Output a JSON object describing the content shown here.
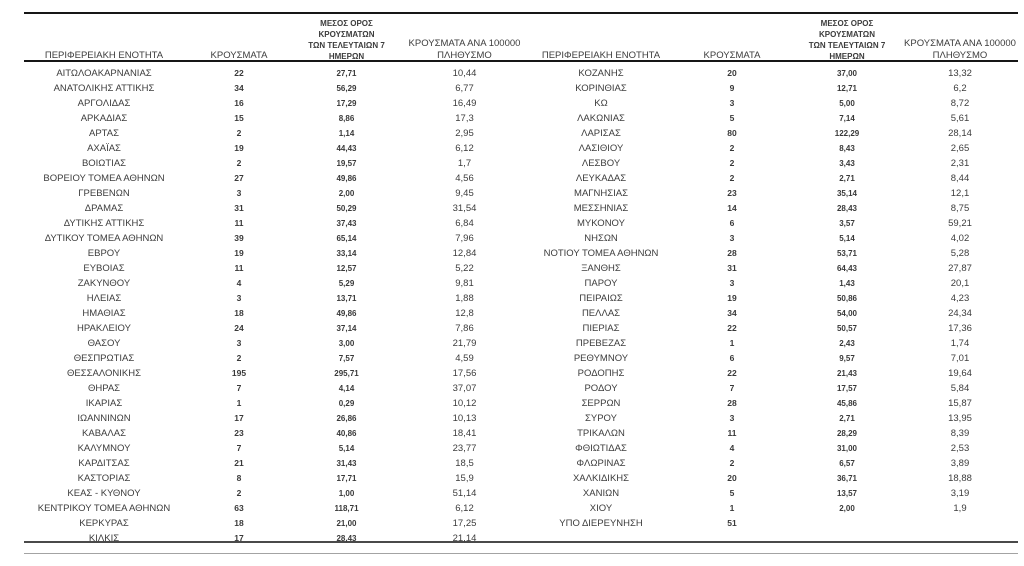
{
  "columns": {
    "region": "ΠΕΡΙΦΕΡΕΙΑΚΗ ΕΝΟΤΗΤΑ",
    "cases": "ΚΡΟΥΣΜΑΤΑ",
    "avg7": "ΜΕΣΟΣ ΟΡΟΣ ΚΡΟΥΣΜΑΤΩΝ\nΤΩΝ ΤΕΛΕΥΤΑΙΩΝ 7\nΗΜΕΡΩΝ",
    "per100k": "ΚΡΟΥΣΜΑΤΑ ΑΝΑ 100000\nΠΛΗΘΥΣΜΟ"
  },
  "left_table": {
    "rows": [
      {
        "region": "ΑΙΤΩΛΟΑΚΑΡΝΑΝΙΑΣ",
        "cases": "22",
        "avg7": "27,71",
        "per100k": "10,44"
      },
      {
        "region": "ΑΝΑΤΟΛΙΚΗΣ ΑΤΤΙΚΗΣ",
        "cases": "34",
        "avg7": "56,29",
        "per100k": "6,77"
      },
      {
        "region": "ΑΡΓΟΛΙΔΑΣ",
        "cases": "16",
        "avg7": "17,29",
        "per100k": "16,49"
      },
      {
        "region": "ΑΡΚΑΔΙΑΣ",
        "cases": "15",
        "avg7": "8,86",
        "per100k": "17,3"
      },
      {
        "region": "ΑΡΤΑΣ",
        "cases": "2",
        "avg7": "1,14",
        "per100k": "2,95"
      },
      {
        "region": "ΑΧΑΪΑΣ",
        "cases": "19",
        "avg7": "44,43",
        "per100k": "6,12"
      },
      {
        "region": "ΒΟΙΩΤΙΑΣ",
        "cases": "2",
        "avg7": "19,57",
        "per100k": "1,7"
      },
      {
        "region": "ΒΟΡΕΙΟΥ ΤΟΜΕΑ ΑΘΗΝΩΝ",
        "cases": "27",
        "avg7": "49,86",
        "per100k": "4,56"
      },
      {
        "region": "ΓΡΕΒΕΝΩΝ",
        "cases": "3",
        "avg7": "2,00",
        "per100k": "9,45"
      },
      {
        "region": "ΔΡΑΜΑΣ",
        "cases": "31",
        "avg7": "50,29",
        "per100k": "31,54"
      },
      {
        "region": "ΔΥΤΙΚΗΣ ΑΤΤΙΚΗΣ",
        "cases": "11",
        "avg7": "37,43",
        "per100k": "6,84"
      },
      {
        "region": "ΔΥΤΙΚΟΥ ΤΟΜΕΑ ΑΘΗΝΩΝ",
        "cases": "39",
        "avg7": "65,14",
        "per100k": "7,96"
      },
      {
        "region": "ΕΒΡΟΥ",
        "cases": "19",
        "avg7": "33,14",
        "per100k": "12,84"
      },
      {
        "region": "ΕΥΒΟΙΑΣ",
        "cases": "11",
        "avg7": "12,57",
        "per100k": "5,22"
      },
      {
        "region": "ΖΑΚΥΝΘΟΥ",
        "cases": "4",
        "avg7": "5,29",
        "per100k": "9,81"
      },
      {
        "region": "ΗΛΕΙΑΣ",
        "cases": "3",
        "avg7": "13,71",
        "per100k": "1,88"
      },
      {
        "region": "ΗΜΑΘΙΑΣ",
        "cases": "18",
        "avg7": "49,86",
        "per100k": "12,8"
      },
      {
        "region": "ΗΡΑΚΛΕΙΟΥ",
        "cases": "24",
        "avg7": "37,14",
        "per100k": "7,86"
      },
      {
        "region": "ΘΑΣΟΥ",
        "cases": "3",
        "avg7": "3,00",
        "per100k": "21,79"
      },
      {
        "region": "ΘΕΣΠΡΩΤΙΑΣ",
        "cases": "2",
        "avg7": "7,57",
        "per100k": "4,59"
      },
      {
        "region": "ΘΕΣΣΑΛΟΝΙΚΗΣ",
        "cases": "195",
        "avg7": "295,71",
        "per100k": "17,56"
      },
      {
        "region": "ΘΗΡΑΣ",
        "cases": "7",
        "avg7": "4,14",
        "per100k": "37,07"
      },
      {
        "region": "ΙΚΑΡΙΑΣ",
        "cases": "1",
        "avg7": "0,29",
        "per100k": "10,12"
      },
      {
        "region": "ΙΩΑΝΝΙΝΩΝ",
        "cases": "17",
        "avg7": "26,86",
        "per100k": "10,13"
      },
      {
        "region": "ΚΑΒΑΛΑΣ",
        "cases": "23",
        "avg7": "40,86",
        "per100k": "18,41"
      },
      {
        "region": "ΚΑΛΥΜΝΟΥ",
        "cases": "7",
        "avg7": "5,14",
        "per100k": "23,77"
      },
      {
        "region": "ΚΑΡΔΙΤΣΑΣ",
        "cases": "21",
        "avg7": "31,43",
        "per100k": "18,5"
      },
      {
        "region": "ΚΑΣΤΟΡΙΑΣ",
        "cases": "8",
        "avg7": "17,71",
        "per100k": "15,9"
      },
      {
        "region": "ΚΕΑΣ - ΚΥΘΝΟΥ",
        "cases": "2",
        "avg7": "1,00",
        "per100k": "51,14"
      },
      {
        "region": "ΚΕΝΤΡΙΚΟΥ ΤΟΜΕΑ ΑΘΗΝΩΝ",
        "cases": "63",
        "avg7": "118,71",
        "per100k": "6,12"
      },
      {
        "region": "ΚΕΡΚΥΡΑΣ",
        "cases": "18",
        "avg7": "21,00",
        "per100k": "17,25"
      },
      {
        "region": "ΚΙΛΚΙΣ",
        "cases": "17",
        "avg7": "28,43",
        "per100k": "21,14"
      }
    ]
  },
  "right_table": {
    "rows": [
      {
        "region": "ΚΟΖΑΝΗΣ",
        "cases": "20",
        "avg7": "37,00",
        "per100k": "13,32"
      },
      {
        "region": "ΚΟΡΙΝΘΙΑΣ",
        "cases": "9",
        "avg7": "12,71",
        "per100k": "6,2"
      },
      {
        "region": "ΚΩ",
        "cases": "3",
        "avg7": "5,00",
        "per100k": "8,72"
      },
      {
        "region": "ΛΑΚΩΝΙΑΣ",
        "cases": "5",
        "avg7": "7,14",
        "per100k": "5,61"
      },
      {
        "region": "ΛΑΡΙΣΑΣ",
        "cases": "80",
        "avg7": "122,29",
        "per100k": "28,14"
      },
      {
        "region": "ΛΑΣΙΘΙΟΥ",
        "cases": "2",
        "avg7": "8,43",
        "per100k": "2,65"
      },
      {
        "region": "ΛΕΣΒΟΥ",
        "cases": "2",
        "avg7": "3,43",
        "per100k": "2,31"
      },
      {
        "region": "ΛΕΥΚΑΔΑΣ",
        "cases": "2",
        "avg7": "2,71",
        "per100k": "8,44"
      },
      {
        "region": "ΜΑΓΝΗΣΙΑΣ",
        "cases": "23",
        "avg7": "35,14",
        "per100k": "12,1"
      },
      {
        "region": "ΜΕΣΣΗΝΙΑΣ",
        "cases": "14",
        "avg7": "28,43",
        "per100k": "8,75"
      },
      {
        "region": "ΜΥΚΟΝΟΥ",
        "cases": "6",
        "avg7": "3,57",
        "per100k": "59,21"
      },
      {
        "region": "ΝΗΣΩΝ",
        "cases": "3",
        "avg7": "5,14",
        "per100k": "4,02"
      },
      {
        "region": "ΝΟΤΙΟΥ ΤΟΜΕΑ ΑΘΗΝΩΝ",
        "cases": "28",
        "avg7": "53,71",
        "per100k": "5,28"
      },
      {
        "region": "ΞΑΝΘΗΣ",
        "cases": "31",
        "avg7": "64,43",
        "per100k": "27,87"
      },
      {
        "region": "ΠΑΡΟΥ",
        "cases": "3",
        "avg7": "1,43",
        "per100k": "20,1"
      },
      {
        "region": "ΠΕΙΡΑΙΩΣ",
        "cases": "19",
        "avg7": "50,86",
        "per100k": "4,23"
      },
      {
        "region": "ΠΕΛΛΑΣ",
        "cases": "34",
        "avg7": "54,00",
        "per100k": "24,34"
      },
      {
        "region": "ΠΙΕΡΙΑΣ",
        "cases": "22",
        "avg7": "50,57",
        "per100k": "17,36"
      },
      {
        "region": "ΠΡΕΒΕΖΑΣ",
        "cases": "1",
        "avg7": "2,43",
        "per100k": "1,74"
      },
      {
        "region": "ΡΕΘΥΜΝΟΥ",
        "cases": "6",
        "avg7": "9,57",
        "per100k": "7,01"
      },
      {
        "region": "ΡΟΔΟΠΗΣ",
        "cases": "22",
        "avg7": "21,43",
        "per100k": "19,64"
      },
      {
        "region": "ΡΟΔΟΥ",
        "cases": "7",
        "avg7": "17,57",
        "per100k": "5,84"
      },
      {
        "region": "ΣΕΡΡΩΝ",
        "cases": "28",
        "avg7": "45,86",
        "per100k": "15,87"
      },
      {
        "region": "ΣΥΡΟΥ",
        "cases": "3",
        "avg7": "2,71",
        "per100k": "13,95"
      },
      {
        "region": "ΤΡΙΚΑΛΩΝ",
        "cases": "11",
        "avg7": "28,29",
        "per100k": "8,39"
      },
      {
        "region": "ΦΘΙΩΤΙΔΑΣ",
        "cases": "4",
        "avg7": "31,00",
        "per100k": "2,53"
      },
      {
        "region": "ΦΛΩΡΙΝΑΣ",
        "cases": "2",
        "avg7": "6,57",
        "per100k": "3,89"
      },
      {
        "region": "ΧΑΛΚΙΔΙΚΗΣ",
        "cases": "20",
        "avg7": "36,71",
        "per100k": "18,88"
      },
      {
        "region": "ΧΑΝΙΩΝ",
        "cases": "5",
        "avg7": "13,57",
        "per100k": "3,19"
      },
      {
        "region": "ΧΙΟΥ",
        "cases": "1",
        "avg7": "2,00",
        "per100k": "1,9"
      },
      {
        "region": "ΥΠΟ ΔΙΕΡΕΥΝΗΣΗ",
        "cases": "51",
        "avg7": "",
        "per100k": ""
      }
    ]
  }
}
